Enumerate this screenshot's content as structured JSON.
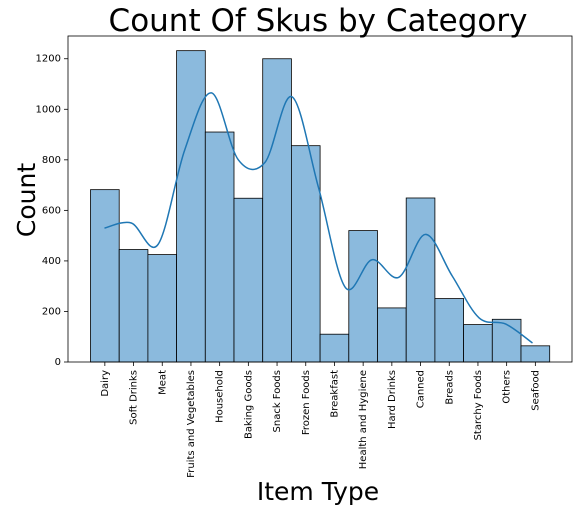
{
  "chart_data": {
    "type": "bar",
    "title": "Count Of Skus by Category",
    "xlabel": "Item Type",
    "ylabel": "Count",
    "categories": [
      "Dairy",
      "Soft Drinks",
      "Meat",
      "Fruits and Vegetables",
      "Household",
      "Baking Goods",
      "Snack Foods",
      "Frozen Foods",
      "Breakfast",
      "Health and Hygiene",
      "Hard Drinks",
      "Canned",
      "Breads",
      "Starchy Foods",
      "Others",
      "Seafood"
    ],
    "values": [
      682,
      445,
      425,
      1232,
      910,
      648,
      1200,
      856,
      110,
      520,
      214,
      649,
      251,
      148,
      169,
      64
    ],
    "kde": [
      530,
      550,
      465,
      840,
      1065,
      800,
      790,
      1050,
      690,
      295,
      405,
      335,
      505,
      340,
      175,
      150,
      75
    ],
    "ylim": [
      0,
      1290
    ],
    "yticks": [
      0,
      200,
      400,
      600,
      800,
      1000,
      1200
    ],
    "bar_color": "#8bbadd",
    "line_color": "#1f77b4",
    "grid": false,
    "legend": "none"
  }
}
